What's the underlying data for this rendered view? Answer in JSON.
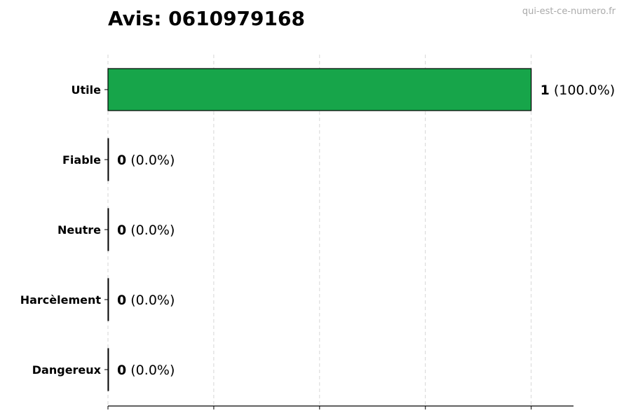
{
  "chart_data": {
    "type": "bar",
    "orientation": "horizontal",
    "title": "Avis: 0610979168",
    "watermark": "qui-est-ce-numero.fr",
    "categories": [
      "Utile",
      "Fiable",
      "Neutre",
      "Harcèlement",
      "Dangereux"
    ],
    "values": [
      1,
      0,
      0,
      0,
      0
    ],
    "labels": [
      {
        "count": "1",
        "pct": "(100.0%)"
      },
      {
        "count": "0",
        "pct": "(0.0%)"
      },
      {
        "count": "0",
        "pct": "(0.0%)"
      },
      {
        "count": "0",
        "pct": "(0.0%)"
      },
      {
        "count": "0",
        "pct": "(0.0%)"
      }
    ],
    "xlim": [
      0,
      1.1
    ],
    "xticks": [
      0,
      0.25,
      0.5,
      0.75,
      1.0
    ],
    "grid": "x dashed",
    "bar_color": "#17a54a",
    "edge_color": "#000000",
    "xlabel": "",
    "ylabel": ""
  }
}
